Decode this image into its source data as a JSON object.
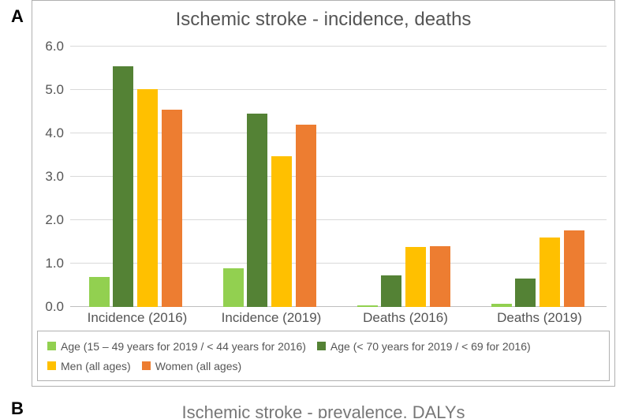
{
  "panel_label": "A",
  "chart": {
    "type": "bar",
    "title": "Ischemic stroke - incidence, deaths",
    "title_fontsize": 24,
    "title_color": "#555555",
    "background_color": "#ffffff",
    "grid_color": "#d9d9d9",
    "axis_color": "#bfbfbf",
    "label_color": "#555555",
    "label_fontsize": 17,
    "ylim": [
      0,
      6
    ],
    "ytick_step": 1.0,
    "ytick_decimals": 1,
    "categories": [
      "Incidence (2016)",
      "Incidence (2019)",
      "Deaths (2016)",
      "Deaths (2019)"
    ],
    "series": [
      {
        "label": "Age (15 – 49 years for 2019 / < 44 years for 2016)",
        "color": "#92d050",
        "values": [
          0.7,
          0.9,
          0.03,
          0.08
        ]
      },
      {
        "label": "Age (< 70 years for 2019 / < 69 for 2016)",
        "color": "#548235",
        "values": [
          5.55,
          4.45,
          0.73,
          0.65
        ]
      },
      {
        "label": "Men (all ages)",
        "color": "#ffc000",
        "values": [
          5.02,
          3.48,
          1.38,
          1.6
        ]
      },
      {
        "label": "Women (all ages)",
        "color": "#ed7d31",
        "values": [
          4.55,
          4.2,
          1.4,
          1.77
        ]
      }
    ],
    "bar_width_ratio": 0.85
  },
  "next_panel_label": "B",
  "next_panel_title": "Ischemic stroke - prevalence, DALYs"
}
